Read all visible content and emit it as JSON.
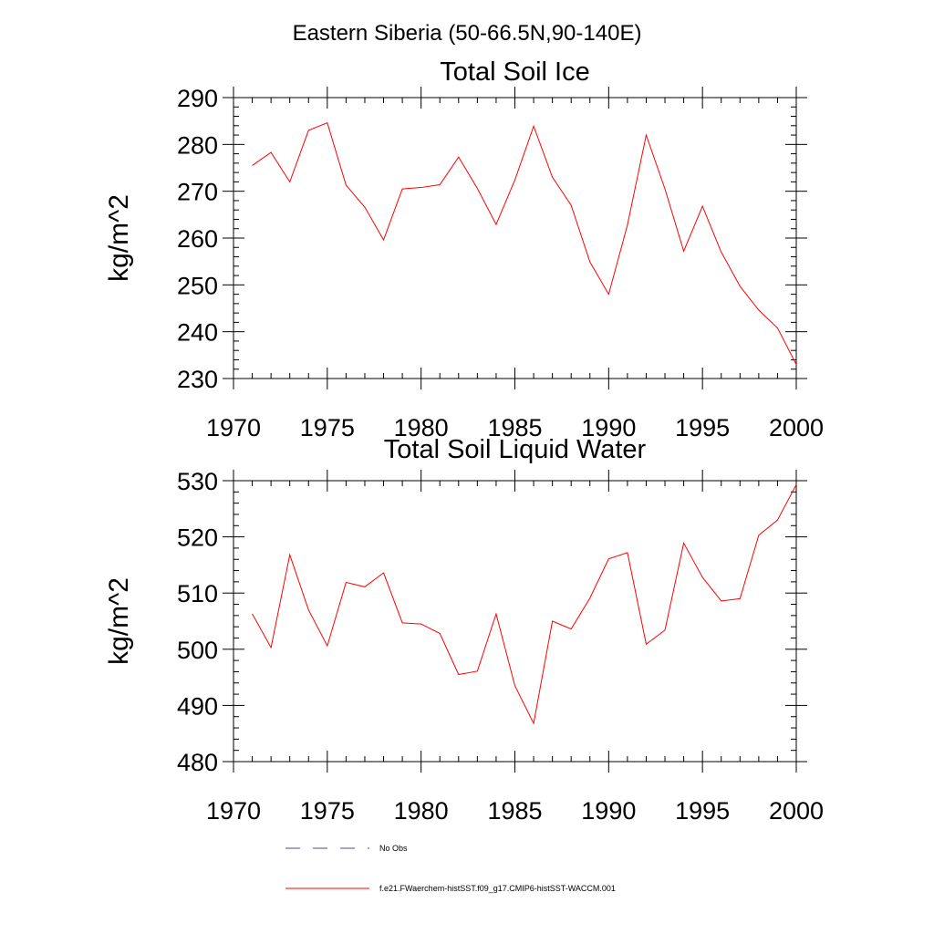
{
  "figure": {
    "title": "Eastern Siberia (50-66.5N,90-140E)"
  },
  "legend": {
    "items": [
      {
        "label": "No Obs",
        "color": "#4b4b8f",
        "dash": true
      },
      {
        "label": "f.e21.FWaerchem-histSST.f09_g17.CMIP6-histSST-WACCM.001",
        "color": "#ff0000",
        "dash": false
      }
    ]
  },
  "chart_data": [
    {
      "type": "line",
      "title": "Total Soil Ice",
      "xlabel": "",
      "ylabel": "kg/m^2",
      "xlim": [
        1970,
        2000
      ],
      "ylim": [
        230,
        290
      ],
      "xticks": [
        1970,
        1975,
        1980,
        1985,
        1990,
        1995,
        2000
      ],
      "yticks": [
        230,
        240,
        250,
        260,
        270,
        280,
        290
      ],
      "grid": false,
      "x": [
        1971,
        1972,
        1973,
        1974,
        1975,
        1976,
        1977,
        1978,
        1979,
        1980,
        1981,
        1982,
        1983,
        1984,
        1985,
        1986,
        1987,
        1988,
        1989,
        1990,
        1991,
        1992,
        1993,
        1994,
        1995,
        1996,
        1997,
        1998,
        1999,
        2000
      ],
      "series": [
        {
          "color": "#ff0000",
          "values": [
            275.5,
            278.3,
            272.0,
            283.0,
            284.6,
            271.3,
            266.6,
            259.6,
            270.5,
            270.8,
            271.4,
            277.3,
            270.6,
            262.9,
            272.4,
            283.9,
            273.0,
            267.0,
            254.9,
            248.0,
            262.8,
            282.0,
            270.5,
            257.2,
            266.8,
            257.0,
            249.7,
            244.6,
            240.8,
            233.0
          ]
        }
      ]
    },
    {
      "type": "line",
      "title": "Total Soil Liquid Water",
      "xlabel": "",
      "ylabel": "kg/m^2",
      "xlim": [
        1970,
        2000
      ],
      "ylim": [
        480,
        530
      ],
      "xticks": [
        1970,
        1975,
        1980,
        1985,
        1990,
        1995,
        2000
      ],
      "yticks": [
        480,
        490,
        500,
        510,
        520,
        530
      ],
      "grid": false,
      "x": [
        1971,
        1972,
        1973,
        1974,
        1975,
        1976,
        1977,
        1978,
        1979,
        1980,
        1981,
        1982,
        1983,
        1984,
        1985,
        1986,
        1987,
        1988,
        1989,
        1990,
        1991,
        1992,
        1993,
        1994,
        1995,
        1996,
        1997,
        1998,
        1999,
        2000
      ],
      "series": [
        {
          "color": "#ff0000",
          "values": [
            506.3,
            500.3,
            516.8,
            507.0,
            500.6,
            511.9,
            511.1,
            513.6,
            504.7,
            504.5,
            502.8,
            495.5,
            496.1,
            506.3,
            493.5,
            486.8,
            505.0,
            503.6,
            509.1,
            516.1,
            517.2,
            500.9,
            503.4,
            518.9,
            512.8,
            508.6,
            509.0,
            520.3,
            523.0,
            529.3
          ]
        }
      ]
    }
  ]
}
